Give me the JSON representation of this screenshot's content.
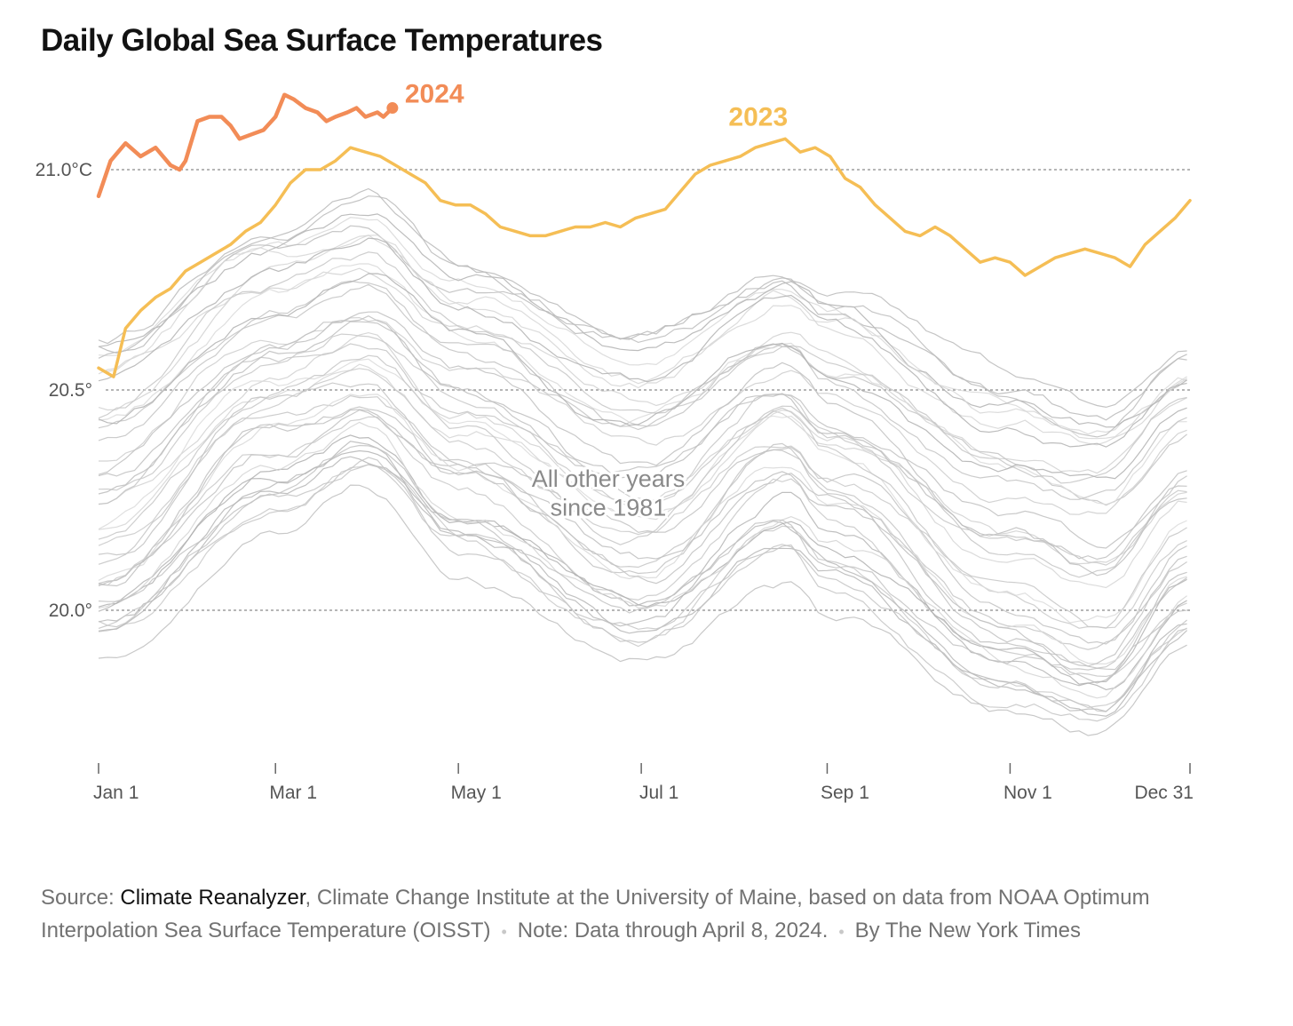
{
  "title": "Daily Global Sea Surface Temperatures",
  "chart_data": {
    "type": "line",
    "title": "Daily Global Sea Surface Temperatures",
    "xlabel": "",
    "ylabel": "",
    "x_domain_days": [
      1,
      365
    ],
    "ylim": [
      19.65,
      21.2
    ],
    "y_ticks": [
      {
        "value": 21.0,
        "label": "21.0°C"
      },
      {
        "value": 20.5,
        "label": "20.5°"
      },
      {
        "value": 20.0,
        "label": "20.0°"
      }
    ],
    "x_ticks": [
      {
        "day": 1,
        "label": "Jan 1"
      },
      {
        "day": 60,
        "label": "Mar 1"
      },
      {
        "day": 121,
        "label": "May 1"
      },
      {
        "day": 182,
        "label": "Jul 1"
      },
      {
        "day": 244,
        "label": "Sep 1"
      },
      {
        "day": 305,
        "label": "Nov 1"
      },
      {
        "day": 365,
        "label": "Dec 31"
      }
    ],
    "series": [
      {
        "name": "2024",
        "label": "2024",
        "color": "#f28c57",
        "end_marker": true,
        "points": [
          [
            1,
            20.94
          ],
          [
            5,
            21.02
          ],
          [
            10,
            21.06
          ],
          [
            15,
            21.03
          ],
          [
            20,
            21.05
          ],
          [
            25,
            21.01
          ],
          [
            28,
            21.0
          ],
          [
            30,
            21.02
          ],
          [
            34,
            21.11
          ],
          [
            38,
            21.12
          ],
          [
            42,
            21.12
          ],
          [
            45,
            21.1
          ],
          [
            48,
            21.07
          ],
          [
            52,
            21.08
          ],
          [
            56,
            21.09
          ],
          [
            60,
            21.12
          ],
          [
            63,
            21.17
          ],
          [
            66,
            21.16
          ],
          [
            70,
            21.14
          ],
          [
            74,
            21.13
          ],
          [
            77,
            21.11
          ],
          [
            80,
            21.12
          ],
          [
            84,
            21.13
          ],
          [
            87,
            21.14
          ],
          [
            90,
            21.12
          ],
          [
            94,
            21.13
          ],
          [
            96,
            21.12
          ],
          [
            99,
            21.14
          ]
        ]
      },
      {
        "name": "2023",
        "label": "2023",
        "color": "#f5be55",
        "points": [
          [
            1,
            20.55
          ],
          [
            6,
            20.53
          ],
          [
            10,
            20.64
          ],
          [
            15,
            20.68
          ],
          [
            20,
            20.71
          ],
          [
            25,
            20.73
          ],
          [
            30,
            20.77
          ],
          [
            35,
            20.79
          ],
          [
            40,
            20.81
          ],
          [
            45,
            20.83
          ],
          [
            50,
            20.86
          ],
          [
            55,
            20.88
          ],
          [
            60,
            20.92
          ],
          [
            65,
            20.97
          ],
          [
            70,
            21.0
          ],
          [
            75,
            21.0
          ],
          [
            80,
            21.02
          ],
          [
            85,
            21.05
          ],
          [
            90,
            21.04
          ],
          [
            95,
            21.03
          ],
          [
            100,
            21.01
          ],
          [
            105,
            20.99
          ],
          [
            110,
            20.97
          ],
          [
            115,
            20.93
          ],
          [
            120,
            20.92
          ],
          [
            125,
            20.92
          ],
          [
            130,
            20.9
          ],
          [
            135,
            20.87
          ],
          [
            140,
            20.86
          ],
          [
            145,
            20.85
          ],
          [
            150,
            20.85
          ],
          [
            155,
            20.86
          ],
          [
            160,
            20.87
          ],
          [
            165,
            20.87
          ],
          [
            170,
            20.88
          ],
          [
            175,
            20.87
          ],
          [
            180,
            20.89
          ],
          [
            185,
            20.9
          ],
          [
            190,
            20.91
          ],
          [
            195,
            20.95
          ],
          [
            200,
            20.99
          ],
          [
            205,
            21.01
          ],
          [
            210,
            21.02
          ],
          [
            215,
            21.03
          ],
          [
            220,
            21.05
          ],
          [
            225,
            21.06
          ],
          [
            230,
            21.07
          ],
          [
            235,
            21.04
          ],
          [
            240,
            21.05
          ],
          [
            245,
            21.03
          ],
          [
            250,
            20.98
          ],
          [
            255,
            20.96
          ],
          [
            260,
            20.92
          ],
          [
            265,
            20.89
          ],
          [
            270,
            20.86
          ],
          [
            275,
            20.85
          ],
          [
            280,
            20.87
          ],
          [
            285,
            20.85
          ],
          [
            290,
            20.82
          ],
          [
            295,
            20.79
          ],
          [
            300,
            20.8
          ],
          [
            305,
            20.79
          ],
          [
            310,
            20.76
          ],
          [
            315,
            20.78
          ],
          [
            320,
            20.8
          ],
          [
            325,
            20.81
          ],
          [
            330,
            20.82
          ],
          [
            335,
            20.81
          ],
          [
            340,
            20.8
          ],
          [
            345,
            20.78
          ],
          [
            350,
            20.83
          ],
          [
            355,
            20.86
          ],
          [
            360,
            20.89
          ],
          [
            365,
            20.93
          ]
        ]
      }
    ],
    "background_series": {
      "name": "All other years since 1981",
      "years": [
        1981,
        2022
      ],
      "color": "#c8c8c8",
      "profiles": [
        {
          "name": "warmest",
          "points": [
            [
              1,
              20.65
            ],
            [
              60,
              20.9
            ],
            [
              90,
              20.95
            ],
            [
              121,
              20.8
            ],
            [
              182,
              20.66
            ],
            [
              230,
              20.79
            ],
            [
              244,
              20.74
            ],
            [
              305,
              20.55
            ],
            [
              335,
              20.48
            ],
            [
              365,
              20.6
            ]
          ]
        },
        {
          "name": "warm",
          "points": [
            [
              1,
              20.35
            ],
            [
              60,
              20.62
            ],
            [
              90,
              20.7
            ],
            [
              121,
              20.55
            ],
            [
              182,
              20.36
            ],
            [
              230,
              20.55
            ],
            [
              244,
              20.48
            ],
            [
              305,
              20.25
            ],
            [
              335,
              20.2
            ],
            [
              365,
              20.38
            ]
          ]
        },
        {
          "name": "mid",
          "points": [
            [
              1,
              20.1
            ],
            [
              60,
              20.45
            ],
            [
              90,
              20.5
            ],
            [
              121,
              20.35
            ],
            [
              182,
              20.12
            ],
            [
              230,
              20.38
            ],
            [
              244,
              20.3
            ],
            [
              305,
              19.98
            ],
            [
              335,
              19.9
            ],
            [
              365,
              20.12
            ]
          ]
        },
        {
          "name": "cool",
          "points": [
            [
              1,
              19.9
            ],
            [
              60,
              20.18
            ],
            [
              90,
              20.28
            ],
            [
              121,
              20.08
            ],
            [
              182,
              19.88
            ],
            [
              230,
              20.06
            ],
            [
              244,
              19.98
            ],
            [
              305,
              19.76
            ],
            [
              335,
              19.72
            ],
            [
              365,
              19.9
            ]
          ]
        }
      ]
    },
    "annotations": [
      {
        "text": "All other years",
        "day": 171,
        "value": 20.28
      },
      {
        "text": "since 1981",
        "day": 171,
        "value": 20.215
      }
    ]
  },
  "footer": {
    "source_label": "Source: ",
    "source_link": "Climate Reanalyzer",
    "source_rest": ", Climate Change Institute at the University of Maine, based on data from NOAA Optimum Interpolation Sea Surface Temperature (OISST)",
    "note": "Note: Data through April 8, 2024.",
    "byline": "By The New York Times"
  }
}
